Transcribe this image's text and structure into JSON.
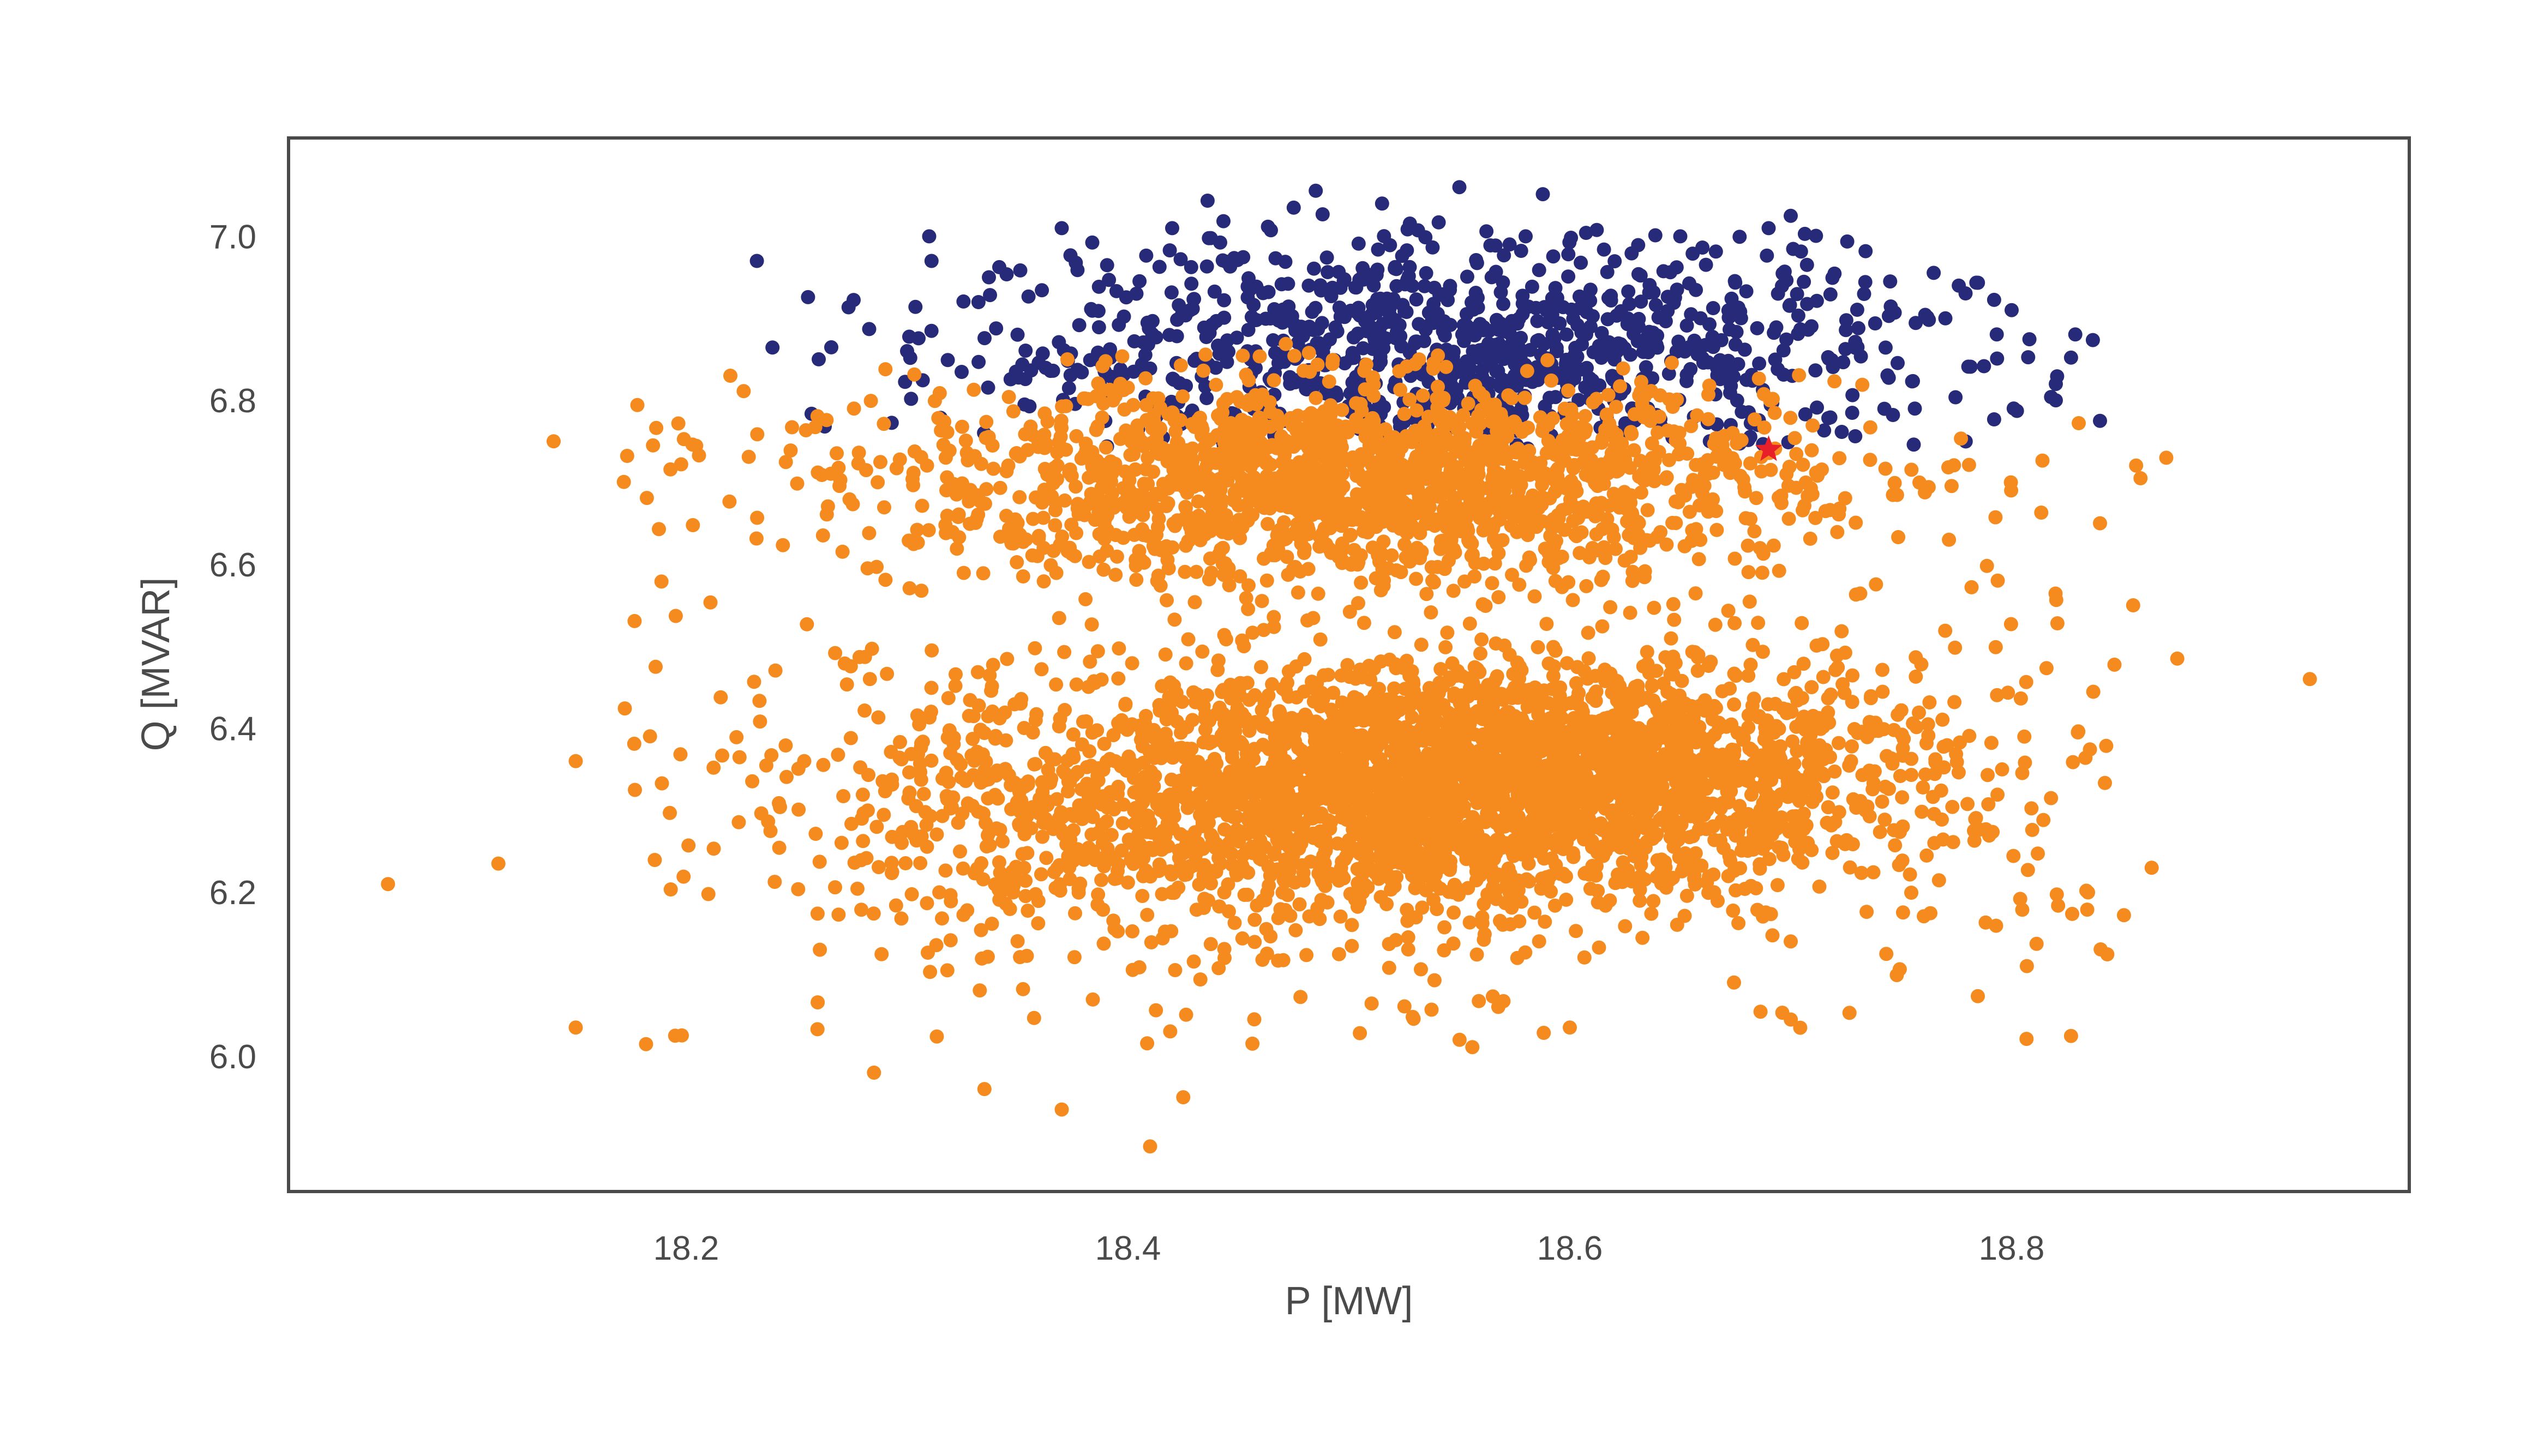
{
  "chart_data": {
    "type": "scatter",
    "title": "",
    "xlabel": "P [MW]",
    "ylabel": "Q [MVAR]",
    "xlim": [
      18.02,
      18.98
    ],
    "ylim": [
      5.835,
      7.12
    ],
    "xticks": [
      "18.2",
      "18.4",
      "18.6",
      "18.8"
    ],
    "yticks": [
      "6.0",
      "6.2",
      "6.4",
      "6.6",
      "6.8",
      "7.0"
    ],
    "grid": false,
    "legend": "none",
    "colors": {
      "series_navy": "#262a78",
      "series_orange": "#f58b1f",
      "marker_star": "#e8202a",
      "axes_frame": "#4a4a4a",
      "text": "#4a4a4a"
    },
    "series": [
      {
        "color": "#262a78",
        "approx_points": 1000,
        "x_range": [
          18.23,
          18.84
        ],
        "y_range": [
          6.74,
          7.06
        ],
        "sample_points": [
          [
            18.232,
            6.97
          ],
          [
            18.31,
            7.0
          ],
          [
            18.37,
            7.01
          ],
          [
            18.42,
            7.01
          ],
          [
            18.475,
            7.035
          ],
          [
            18.515,
            7.04
          ],
          [
            18.55,
            7.06
          ],
          [
            18.58,
            7.0
          ],
          [
            18.65,
            7.0
          ],
          [
            18.7,
            7.025
          ],
          [
            18.69,
            7.01
          ],
          [
            18.745,
            6.945
          ],
          [
            18.8,
            6.91
          ],
          [
            18.82,
            6.82
          ],
          [
            18.84,
            6.775
          ],
          [
            18.82,
            6.8
          ],
          [
            18.3,
            6.86
          ],
          [
            18.35,
            6.88
          ],
          [
            18.26,
            6.85
          ],
          [
            18.77,
            6.9
          ]
        ]
      },
      {
        "color": "#f58b1f",
        "approx_points": 5000,
        "x_range": [
          18.06,
          18.93
        ],
        "y_range": [
          5.89,
          6.87
        ],
        "clusters": [
          {
            "center": [
              18.5,
              6.7
            ],
            "spread": [
              0.1,
              0.06
            ]
          },
          {
            "center": [
              18.5,
              6.31
            ],
            "spread": [
              0.11,
              0.08
            ]
          },
          {
            "center": [
              18.6,
              6.36
            ],
            "spread": [
              0.08,
              0.06
            ]
          }
        ],
        "sample_points": [
          [
            18.065,
            6.21
          ],
          [
            18.115,
            6.235
          ],
          [
            18.14,
            6.75
          ],
          [
            18.15,
            6.36
          ],
          [
            18.15,
            6.035
          ],
          [
            18.185,
            6.745
          ],
          [
            18.195,
            6.025
          ],
          [
            18.22,
            6.83
          ],
          [
            18.285,
            5.98
          ],
          [
            18.335,
            5.96
          ],
          [
            18.37,
            5.935
          ],
          [
            18.41,
            5.89
          ],
          [
            18.425,
            5.95
          ],
          [
            18.6,
            6.035
          ],
          [
            18.7,
            6.14
          ],
          [
            18.765,
            6.26
          ],
          [
            18.87,
            6.73
          ],
          [
            18.875,
            6.485
          ],
          [
            18.935,
            6.46
          ],
          [
            18.83,
            6.395
          ],
          [
            18.855,
            6.55
          ],
          [
            18.84,
            6.65
          ]
        ]
      }
    ],
    "highlight": {
      "marker": "star",
      "color": "#e8202a",
      "x": 18.69,
      "y": 6.74
    }
  }
}
